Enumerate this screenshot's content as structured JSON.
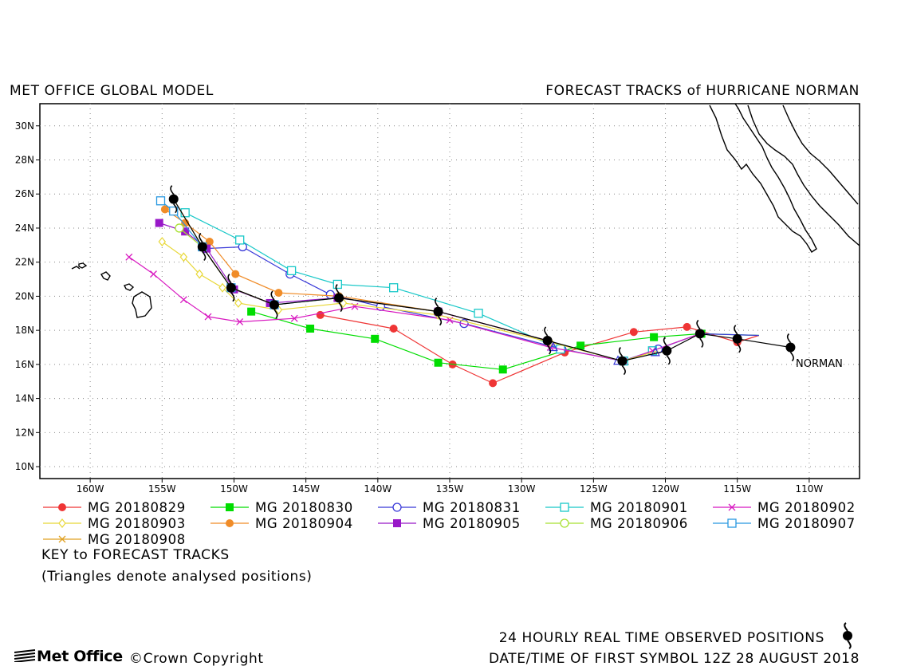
{
  "header": {
    "left_title": "MET OFFICE GLOBAL MODEL",
    "right_title": "FORECAST TRACKS of HURRICANE NORMAN"
  },
  "chart_data": {
    "type": "line",
    "title": "FORECAST TRACKS of HURRICANE NORMAN",
    "subtitle": "MET OFFICE GLOBAL MODEL",
    "x_ticks": [
      "160W",
      "155W",
      "150W",
      "145W",
      "140W",
      "135W",
      "130W",
      "125W",
      "120W",
      "115W",
      "110W"
    ],
    "y_ticks": [
      "10N",
      "12N",
      "14N",
      "16N",
      "18N",
      "20N",
      "22N",
      "24N",
      "26N",
      "28N",
      "30N"
    ],
    "xlim": [
      -163.5,
      -106.5
    ],
    "ylim": [
      9.3,
      31.3
    ],
    "grid": true,
    "storm_label": "NORMAN",
    "observed_track": {
      "name": "24 HOURLY REAL TIME OBSERVED POSITIONS",
      "points": [
        [
          -111.3,
          17.0
        ],
        [
          -115.0,
          17.5
        ],
        [
          -117.6,
          17.8
        ],
        [
          -119.9,
          16.8
        ],
        [
          -123.0,
          16.2
        ],
        [
          -128.2,
          17.4
        ],
        [
          -135.8,
          19.1
        ],
        [
          -142.7,
          19.9
        ],
        [
          -147.2,
          19.5
        ],
        [
          -150.2,
          20.5
        ],
        [
          -152.2,
          22.9
        ],
        [
          -154.2,
          25.7
        ]
      ]
    },
    "series": [
      {
        "name": "MG 20180829",
        "color": "#ef3535",
        "marker": "dot",
        "points": [
          [
            -113.5,
            17.7
          ],
          [
            -115.0,
            17.3
          ],
          [
            -118.5,
            18.2
          ],
          [
            -122.2,
            17.9
          ],
          [
            -127.0,
            16.7
          ],
          [
            -132.0,
            14.9
          ],
          [
            -134.8,
            16.0
          ],
          [
            -138.9,
            18.1
          ],
          [
            -144.0,
            18.9
          ]
        ]
      },
      {
        "name": "MG 20180830",
        "color": "#00dd00",
        "marker": "square",
        "points": [
          [
            -113.5,
            17.7
          ],
          [
            -117.5,
            17.8
          ],
          [
            -120.8,
            17.6
          ],
          [
            -125.9,
            17.1
          ],
          [
            -131.3,
            15.7
          ],
          [
            -135.8,
            16.1
          ],
          [
            -140.2,
            17.5
          ],
          [
            -144.7,
            18.1
          ],
          [
            -148.8,
            19.1
          ]
        ]
      },
      {
        "name": "MG 20180831",
        "color": "#3838d8",
        "marker": "circle",
        "points": [
          [
            -113.5,
            17.7
          ],
          [
            -117.6,
            17.8
          ],
          [
            -120.5,
            16.9
          ],
          [
            -123.0,
            16.2
          ],
          [
            -127.2,
            16.9
          ],
          [
            -134.0,
            18.4
          ],
          [
            -139.8,
            19.4
          ],
          [
            -143.3,
            20.1
          ],
          [
            -146.1,
            21.3
          ],
          [
            -149.4,
            22.9
          ],
          [
            -152.0,
            22.8
          ]
        ]
      },
      {
        "name": "MG 20180901",
        "color": "#18c8c8",
        "marker": "opensquare",
        "points": [
          [
            -117.6,
            17.8
          ],
          [
            -120.9,
            16.8
          ],
          [
            -122.9,
            16.2
          ],
          [
            -127.3,
            16.9
          ],
          [
            -133.0,
            19.0
          ],
          [
            -138.9,
            20.5
          ],
          [
            -142.8,
            20.7
          ],
          [
            -146.0,
            21.5
          ],
          [
            -149.6,
            23.3
          ],
          [
            -153.4,
            24.9
          ]
        ]
      },
      {
        "name": "MG 20180902",
        "color": "#d818c0",
        "marker": "x",
        "points": [
          [
            -117.6,
            17.8
          ],
          [
            -120.9,
            16.8
          ],
          [
            -122.9,
            16.2
          ],
          [
            -128.0,
            17.0
          ],
          [
            -135.0,
            18.6
          ],
          [
            -141.6,
            19.4
          ],
          [
            -145.8,
            18.7
          ],
          [
            -149.6,
            18.5
          ],
          [
            -151.8,
            18.8
          ],
          [
            -153.5,
            19.8
          ],
          [
            -155.6,
            21.3
          ],
          [
            -157.3,
            22.3
          ]
        ]
      },
      {
        "name": "MG 20180903",
        "color": "#e8d838",
        "marker": "diamond",
        "points": [
          [
            -120.5,
            16.8
          ],
          [
            -123.0,
            16.2
          ],
          [
            -128.0,
            17.3
          ],
          [
            -135.8,
            18.9
          ],
          [
            -142.4,
            19.6
          ],
          [
            -146.9,
            19.2
          ],
          [
            -149.7,
            19.6
          ],
          [
            -150.8,
            20.5
          ],
          [
            -152.4,
            21.3
          ],
          [
            -153.5,
            22.3
          ],
          [
            -155.0,
            23.2
          ]
        ]
      },
      {
        "name": "MG 20180904",
        "color": "#f08c28",
        "marker": "dot",
        "points": [
          [
            -128.2,
            17.4
          ],
          [
            -135.8,
            19.1
          ],
          [
            -142.7,
            20.0
          ],
          [
            -146.9,
            20.2
          ],
          [
            -149.9,
            21.3
          ],
          [
            -151.7,
            23.2
          ],
          [
            -153.4,
            24.3
          ],
          [
            -154.8,
            25.1
          ]
        ]
      },
      {
        "name": "MG 20180905",
        "color": "#9818c8",
        "marker": "square",
        "points": [
          [
            -128.2,
            17.4
          ],
          [
            -135.8,
            19.1
          ],
          [
            -142.8,
            19.9
          ],
          [
            -147.5,
            19.6
          ],
          [
            -150.0,
            20.4
          ],
          [
            -151.9,
            22.8
          ],
          [
            -153.4,
            23.8
          ],
          [
            -155.2,
            24.3
          ]
        ]
      },
      {
        "name": "MG 20180906",
        "color": "#a8e030",
        "marker": "circle",
        "points": [
          [
            -135.8,
            19.1
          ],
          [
            -142.7,
            19.9
          ],
          [
            -147.2,
            19.5
          ],
          [
            -150.2,
            20.5
          ],
          [
            -152.2,
            22.9
          ],
          [
            -153.8,
            24.0
          ]
        ]
      },
      {
        "name": "MG 20180907",
        "color": "#2898e0",
        "marker": "opensquare",
        "points": [
          [
            -142.7,
            19.9
          ],
          [
            -147.2,
            19.5
          ],
          [
            -150.2,
            20.5
          ],
          [
            -152.2,
            22.9
          ],
          [
            -154.2,
            25.0
          ],
          [
            -155.1,
            25.6
          ]
        ]
      },
      {
        "name": "MG 20180908",
        "color": "#e0a020",
        "marker": "x",
        "points": [
          [
            -147.2,
            19.5
          ],
          [
            -150.2,
            20.5
          ],
          [
            -152.2,
            22.9
          ],
          [
            -154.2,
            25.7
          ]
        ]
      }
    ],
    "analysed_triangles": [
      [
        -123.3,
        16.2
      ],
      [
        -120.7,
        16.7
      ],
      [
        -127.8,
        17.0
      ]
    ]
  },
  "legend": {
    "rows": [
      [
        "MG 20180829",
        "MG 20180830",
        "MG 20180831",
        "MG 20180901",
        "MG 20180902"
      ],
      [
        "MG 20180903",
        "MG 20180904",
        "MG 20180905",
        "MG 20180906",
        "MG 20180907"
      ],
      [
        "MG 20180908"
      ]
    ],
    "key_title": "KEY to FORECAST TRACKS",
    "key_note": "(Triangles denote analysed positions)"
  },
  "footer": {
    "observed_label": "24 HOURLY REAL TIME OBSERVED POSITIONS",
    "date_label": "DATE/TIME OF FIRST SYMBOL 12Z 28 AUGUST 2018",
    "logo_text": "Met Office",
    "copyright": "©Crown Copyright"
  }
}
